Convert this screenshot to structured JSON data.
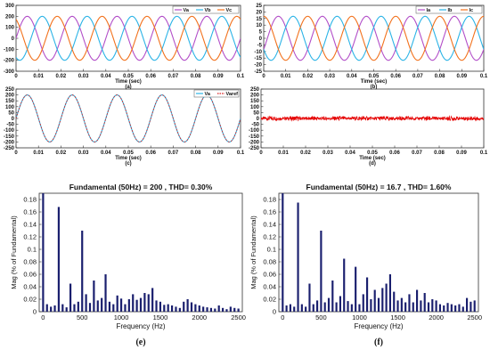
{
  "chart_data": [
    {
      "id": "a",
      "type": "line",
      "caption": "(a)",
      "xlabel": "Time (sec)",
      "xlim": [
        0,
        0.1
      ],
      "ylim": [
        -300,
        300
      ],
      "xticks": [
        "0",
        "0.01",
        "0.02",
        "0.03",
        "0.04",
        "0.05",
        "0.06",
        "0.07",
        "0.08",
        "0.09",
        "0.1"
      ],
      "yticks": [
        "300",
        "200",
        "100",
        "0",
        "-100",
        "-200",
        "-300"
      ],
      "legend_position": "top-right",
      "series": [
        {
          "name": "Va",
          "amplitude": 200,
          "frequency": 50,
          "phase_deg": 0,
          "color": "#b24ec8"
        },
        {
          "name": "Vb",
          "amplitude": 200,
          "frequency": 50,
          "phase_deg": -120,
          "color": "#2ab3e6"
        },
        {
          "name": "Vc",
          "amplitude": 200,
          "frequency": 50,
          "phase_deg": 120,
          "color": "#f2711c"
        }
      ]
    },
    {
      "id": "b",
      "type": "line",
      "caption": "(b)",
      "xlabel": "Time (sec)",
      "xlim": [
        0,
        0.1
      ],
      "ylim": [
        -25,
        25
      ],
      "xticks": [
        "0",
        "0.01",
        "0.02",
        "0.03",
        "0.04",
        "0.05",
        "0.06",
        "0.07",
        "0.08",
        "0.09",
        "0.1"
      ],
      "yticks": [
        "25",
        "20",
        "15",
        "10",
        "5",
        "0",
        "-5",
        "-10",
        "-15",
        "-20",
        "-25"
      ],
      "legend_position": "top-right",
      "series": [
        {
          "name": "Ia",
          "amplitude": 16.7,
          "frequency": 50,
          "phase_deg": -30,
          "color": "#b24ec8"
        },
        {
          "name": "Ib",
          "amplitude": 16.7,
          "frequency": 50,
          "phase_deg": -150,
          "color": "#2ab3e6"
        },
        {
          "name": "Ic",
          "amplitude": 16.7,
          "frequency": 50,
          "phase_deg": 90,
          "color": "#f2711c"
        }
      ]
    },
    {
      "id": "c",
      "type": "line",
      "caption": "(c)",
      "xlabel": "Time (sec)",
      "xlim": [
        0,
        0.1
      ],
      "ylim": [
        -250,
        250
      ],
      "xticks": [
        "0",
        "0.01",
        "0.02",
        "0.03",
        "0.04",
        "0.05",
        "0.06",
        "0.07",
        "0.08",
        "0.09",
        "0.1"
      ],
      "yticks": [
        "250",
        "200",
        "150",
        "100",
        "50",
        "0",
        "-50",
        "-100",
        "-150",
        "-200",
        "-250"
      ],
      "legend_position": "top-right",
      "series": [
        {
          "name": "Va",
          "amplitude": 200,
          "frequency": 50,
          "phase_deg": 0,
          "color": "#2ab3e6"
        },
        {
          "name": "Varef",
          "amplitude": 200,
          "frequency": 50,
          "phase_deg": 0,
          "color": "#d81f1f",
          "dashed": true
        }
      ]
    },
    {
      "id": "d",
      "type": "line",
      "caption": "(d)",
      "xlabel": "Time (sec)",
      "xlim": [
        0,
        0.1
      ],
      "ylim": [
        -250,
        250
      ],
      "xticks": [
        "0",
        "0.01",
        "0.02",
        "0.03",
        "0.04",
        "0.05",
        "0.06",
        "0.07",
        "0.08",
        "0.09",
        "0.1"
      ],
      "yticks": [
        "250",
        "200",
        "150",
        "100",
        "50",
        "0",
        "-50",
        "-100",
        "-150",
        "-200",
        "-250"
      ],
      "series": [
        {
          "name": "",
          "amplitude": 20,
          "frequency": 50,
          "color": "#e50000"
        }
      ]
    },
    {
      "id": "e",
      "type": "bar",
      "title": "Fundamental (50Hz) = 200 , THD= 0.30%",
      "caption": "(e)",
      "xlabel": "Frequency (Hz)",
      "ylabel": "Mag (% of Fundamental)",
      "xlim": [
        -50,
        2550
      ],
      "ylim": [
        0,
        0.19
      ],
      "xticks": [
        "0",
        "500",
        "1000",
        "1500",
        "2000",
        "2500"
      ],
      "yticks": [
        "0",
        "0.02",
        "0.04",
        "0.06",
        "0.08",
        "0.1",
        "0.12",
        "0.14",
        "0.16",
        "0.18"
      ],
      "bar_color": "#1a1f6e",
      "x": [
        0,
        50,
        100,
        150,
        200,
        250,
        300,
        350,
        400,
        450,
        500,
        550,
        600,
        650,
        700,
        750,
        800,
        850,
        900,
        950,
        1000,
        1050,
        1100,
        1150,
        1200,
        1250,
        1300,
        1350,
        1400,
        1450,
        1500,
        1550,
        1600,
        1650,
        1700,
        1750,
        1800,
        1850,
        1900,
        1950,
        2000,
        2050,
        2100,
        2150,
        2200,
        2250,
        2300,
        2350,
        2400,
        2450,
        2500
      ],
      "values": [
        0.19,
        0.012,
        0.008,
        0.01,
        0.168,
        0.012,
        0.007,
        0.045,
        0.012,
        0.016,
        0.13,
        0.028,
        0.014,
        0.05,
        0.018,
        0.022,
        0.06,
        0.016,
        0.012,
        0.026,
        0.021,
        0.012,
        0.02,
        0.028,
        0.019,
        0.022,
        0.03,
        0.028,
        0.038,
        0.018,
        0.016,
        0.011,
        0.012,
        0.01,
        0.008,
        0.006,
        0.016,
        0.02,
        0.015,
        0.012,
        0.01,
        0.008,
        0.007,
        0.006,
        0.005,
        0.01,
        0.006,
        0.004,
        0.008,
        0.006,
        0.005
      ]
    },
    {
      "id": "f",
      "type": "bar",
      "title": "Fundamental (50Hz) = 16.7 , THD= 1.60%",
      "caption": "(f)",
      "xlabel": "Frequency (Hz)",
      "ylabel": "Mag (% of Fundamental)",
      "xlim": [
        -50,
        2550
      ],
      "ylim": [
        0,
        0.19
      ],
      "xticks": [
        "0",
        "500",
        "1000",
        "1500",
        "2000",
        "2500"
      ],
      "yticks": [
        "0",
        "0.02",
        "0.04",
        "0.06",
        "0.08",
        "0.1",
        "0.12",
        "0.14",
        "0.16",
        "0.18"
      ],
      "bar_color": "#1a1f6e",
      "x": [
        0,
        50,
        100,
        150,
        200,
        250,
        300,
        350,
        400,
        450,
        500,
        550,
        600,
        650,
        700,
        750,
        800,
        850,
        900,
        950,
        1000,
        1050,
        1100,
        1150,
        1200,
        1250,
        1300,
        1350,
        1400,
        1450,
        1500,
        1550,
        1600,
        1650,
        1700,
        1750,
        1800,
        1850,
        1900,
        1950,
        2000,
        2050,
        2100,
        2150,
        2200,
        2250,
        2300,
        2350,
        2400,
        2450,
        2500
      ],
      "values": [
        0.19,
        0.01,
        0.012,
        0.008,
        0.175,
        0.012,
        0.008,
        0.045,
        0.012,
        0.018,
        0.13,
        0.015,
        0.022,
        0.05,
        0.015,
        0.025,
        0.085,
        0.017,
        0.012,
        0.072,
        0.012,
        0.028,
        0.055,
        0.02,
        0.035,
        0.022,
        0.038,
        0.045,
        0.06,
        0.032,
        0.018,
        0.022,
        0.015,
        0.028,
        0.015,
        0.035,
        0.018,
        0.03,
        0.015,
        0.02,
        0.018,
        0.012,
        0.01,
        0.014,
        0.012,
        0.01,
        0.012,
        0.008,
        0.022,
        0.016,
        0.018
      ]
    }
  ]
}
